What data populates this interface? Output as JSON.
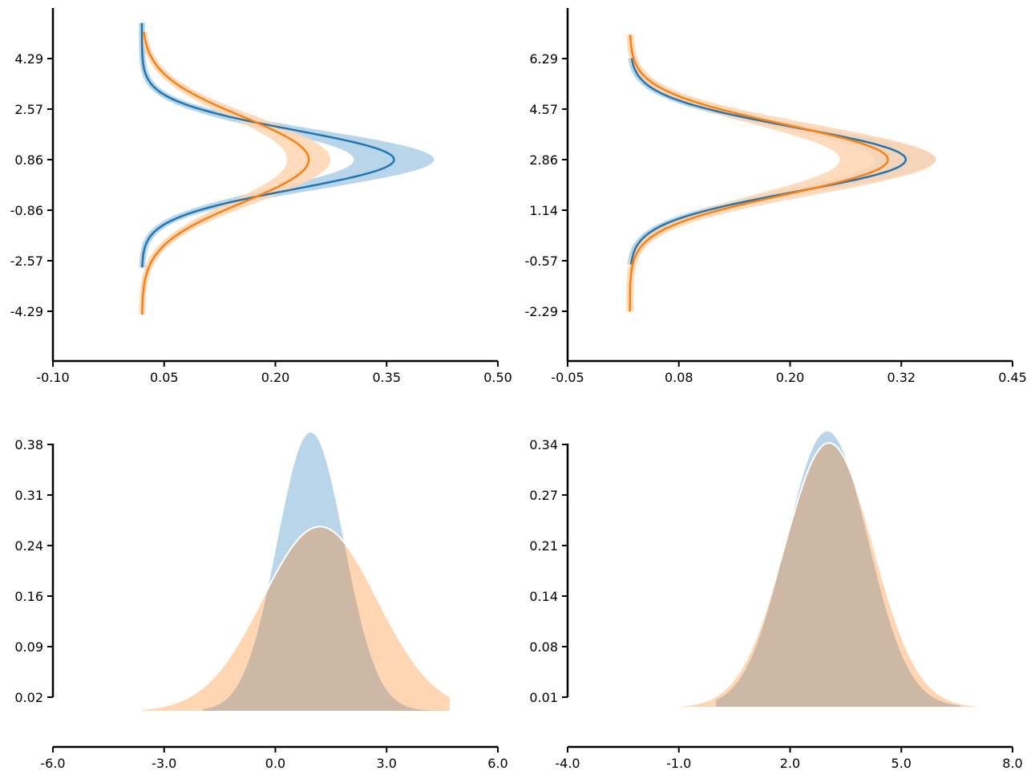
{
  "colors": {
    "blue": "#1f77b4",
    "blue_fill": "#b9d5ea",
    "orange": "#ff7f0e",
    "orange_fill": "#ffd5b2",
    "overlap": "#cdb8a5",
    "axis": "#000000"
  },
  "chart_data": [
    {
      "type": "line",
      "orientation": "vertical density",
      "xlim": [
        -0.1,
        0.5
      ],
      "ylim": [
        -6.3,
        6.0
      ],
      "x_ticks": [
        "-0.10",
        "0.05",
        "0.20",
        "0.35",
        "0.50"
      ],
      "y_ticks": [
        "4.29",
        "2.57",
        "0.86",
        "-0.86",
        "-2.57",
        "-4.29"
      ],
      "grid": false,
      "series": [
        {
          "color": "blue",
          "mu": 0.86,
          "sigma": 1.0,
          "ymin": -2.8,
          "ymax": 5.5,
          "band": 0.05,
          "band_label_peak": [
            0.33,
            0.43
          ]
        },
        {
          "color": "orange",
          "mu": 0.86,
          "sigma": 1.45,
          "ymin": -4.4,
          "ymax": 5.2,
          "band": 0.025,
          "band_label_peak": [
            0.24,
            0.29
          ]
        }
      ]
    },
    {
      "type": "line",
      "orientation": "vertical density",
      "xlim": [
        -0.05,
        0.45
      ],
      "ylim": [
        -4.3,
        8.0
      ],
      "x_ticks": [
        "-0.05",
        "0.08",
        "0.20",
        "0.32",
        "0.45"
      ],
      "y_ticks": [
        "6.29",
        "4.57",
        "2.86",
        "1.14",
        "-0.57",
        "-2.29"
      ],
      "grid": false,
      "series": [
        {
          "color": "blue",
          "mu": 2.86,
          "sigma": 1.08,
          "ymin": -0.7,
          "ymax": 6.3,
          "band": 0.03,
          "band_label_peak": [
            0.32,
            0.38
          ]
        },
        {
          "color": "orange",
          "mu": 2.86,
          "sigma": 1.18,
          "ymin": -2.3,
          "ymax": 7.1,
          "band": 0.03,
          "band_label_peak": [
            0.28,
            0.38
          ]
        }
      ]
    },
    {
      "type": "area",
      "xlim": [
        -6.0,
        6.0
      ],
      "ylim": [
        -0.09,
        0.4
      ],
      "x_ticks": [
        "-6.0",
        "-3.0",
        "0.0",
        "3.0",
        "6.0"
      ],
      "y_ticks": [
        "0.38",
        "0.31",
        "0.24",
        "0.16",
        "0.09",
        "0.02"
      ],
      "grid": false,
      "series": [
        {
          "color": "blue",
          "kind": "filled density",
          "peak_x": 0.95,
          "peak_y": 0.397,
          "xmin": -1.95,
          "xmax": 5.0
        },
        {
          "color": "orange",
          "kind": "filled density",
          "peak_x": 1.2,
          "peak_y": 0.263,
          "xmin": -3.6,
          "xmax": 4.7
        }
      ]
    },
    {
      "type": "area",
      "xlim": [
        -4.0,
        8.0
      ],
      "ylim": [
        -0.06,
        0.345
      ],
      "x_ticks": [
        "-4.0",
        "-1.0",
        "2.0",
        "5.0",
        "8.0"
      ],
      "y_ticks": [
        "0.34",
        "0.27",
        "0.21",
        "0.14",
        "0.08",
        "0.01"
      ],
      "grid": false,
      "series": [
        {
          "color": "blue",
          "kind": "filled density",
          "peak_x": 3.0,
          "peak_y": 0.357,
          "xmin": 0.0,
          "xmax": 6.6
        },
        {
          "color": "orange",
          "kind": "filled density",
          "peak_x": 3.05,
          "peak_y": 0.342,
          "xmin": -2.5,
          "xmax": 7.1
        }
      ]
    }
  ]
}
